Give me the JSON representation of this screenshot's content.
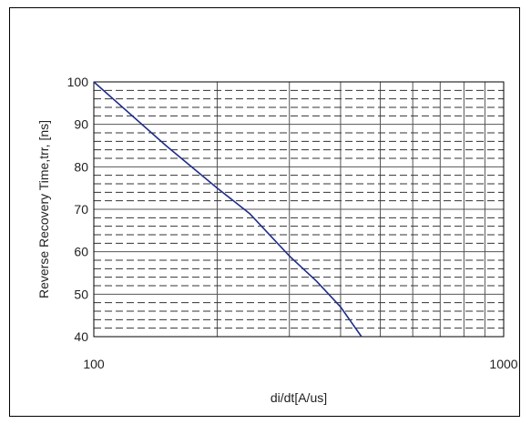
{
  "chart_data": {
    "type": "line",
    "xscale": "log",
    "xlim": [
      100,
      1000
    ],
    "ylim": [
      40,
      100
    ],
    "xlabel": "di/dt[A/us]",
    "ylabel": "Reverse Recovery Time,trr, [ns]",
    "x_ticks": [
      "100",
      "1000"
    ],
    "y_ticks": [
      "40",
      "50",
      "60",
      "70",
      "80",
      "90",
      "100"
    ],
    "grid": true,
    "series": [
      {
        "color": "#1f2d8a",
        "x": [
          100,
          150,
          200,
          240,
          300,
          350,
          400,
          450
        ],
        "y": [
          100,
          85,
          75,
          69,
          59,
          53,
          47,
          40
        ]
      }
    ]
  }
}
